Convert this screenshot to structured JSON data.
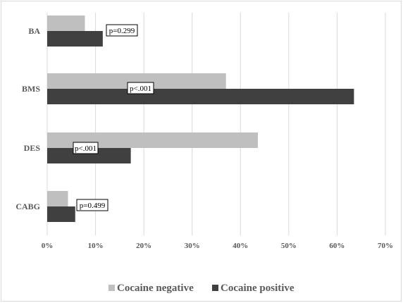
{
  "chart_data": {
    "type": "bar",
    "orientation": "horizontal",
    "categories": [
      "BA",
      "BMS",
      "DES",
      "CABG"
    ],
    "series": [
      {
        "name": "Cocaine negative",
        "color": "#bfbfbf",
        "values": [
          7.8,
          37.0,
          43.6,
          4.3
        ]
      },
      {
        "name": "Cocaine positive",
        "color": "#404040",
        "values": [
          11.5,
          63.5,
          17.3,
          5.8
        ]
      }
    ],
    "annotations": [
      "p=0.299",
      "p<.001",
      "p<.001",
      "p=0.499"
    ],
    "xlim": [
      0,
      70
    ],
    "xticks": [
      0,
      10,
      20,
      30,
      40,
      50,
      60,
      70
    ],
    "xtick_labels": [
      "0%",
      "10%",
      "20%",
      "30%",
      "40%",
      "50%",
      "60%",
      "70%"
    ],
    "grid": "vertical",
    "legend_position": "bottom"
  }
}
